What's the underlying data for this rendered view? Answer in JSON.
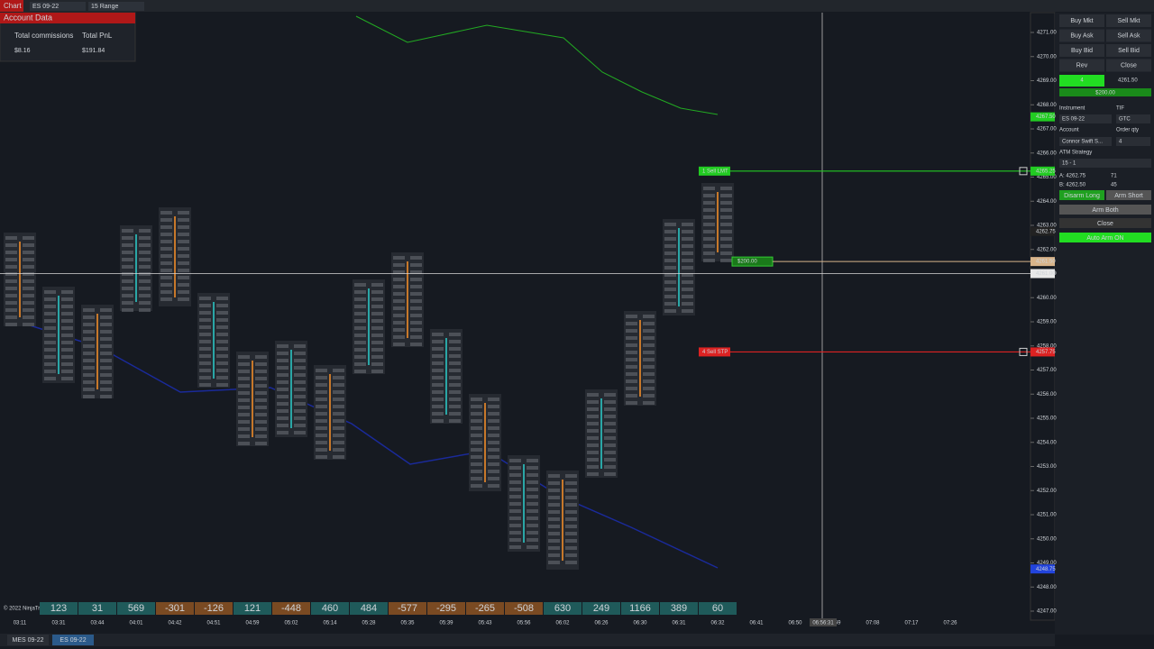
{
  "toolbar": {
    "chart_tab": "Chart",
    "instrument": "ES 09-22",
    "period": "15 Range"
  },
  "account_panel": {
    "title": "Account Data",
    "headers": [
      "Total commissions",
      "Total PnL"
    ],
    "values": [
      "$8.16",
      "$191.84"
    ]
  },
  "price_axis": [
    {
      "value": 4271,
      "label": "4271.00"
    },
    {
      "value": 4270,
      "label": "4270.00"
    },
    {
      "value": 4269,
      "label": "4269.00"
    },
    {
      "value": 4268,
      "label": "4268.00"
    },
    {
      "value": 4267,
      "label": "4267.00"
    },
    {
      "value": 4266,
      "label": "4266.00"
    },
    {
      "value": 4265,
      "label": "4265.00"
    },
    {
      "value": 4264,
      "label": "4264.00"
    },
    {
      "value": 4263,
      "label": "4263.00"
    },
    {
      "value": 4262,
      "label": "4262.00"
    },
    {
      "value": 4261,
      "label": "4261.00"
    },
    {
      "value": 4260,
      "label": "4260.00"
    },
    {
      "value": 4259,
      "label": "4259.00"
    },
    {
      "value": 4258,
      "label": "4258.00"
    },
    {
      "value": 4257,
      "label": "4257.00"
    },
    {
      "value": 4256,
      "label": "4256.00"
    },
    {
      "value": 4255,
      "label": "4255.00"
    },
    {
      "value": 4254,
      "label": "4254.00"
    },
    {
      "value": 4253,
      "label": "4253.00"
    },
    {
      "value": 4252,
      "label": "4252.00"
    },
    {
      "value": 4251,
      "label": "4251.00"
    },
    {
      "value": 4250,
      "label": "4250.00"
    },
    {
      "value": 4249,
      "label": "4249.00"
    },
    {
      "value": 4248,
      "label": "4248.00"
    },
    {
      "value": 4247,
      "label": "4247.00"
    }
  ],
  "price_markers": [
    {
      "value": 4267.5,
      "label": "4267.50",
      "color": "#22cc22"
    },
    {
      "value": 4265.25,
      "label": "4265.25",
      "color": "#22cc22"
    },
    {
      "value": 4262.75,
      "label": "4262.75",
      "color": "#222222"
    },
    {
      "value": 4261.5,
      "label": "4261.50",
      "color": "#d8b48a"
    },
    {
      "value": 4261,
      "label": "4261.00",
      "color": "#e8e8e8"
    },
    {
      "value": 4257.75,
      "label": "4257.75",
      "color": "#dd2222"
    },
    {
      "value": 4248.75,
      "label": "4248.75",
      "color": "#2244dd"
    }
  ],
  "orders": [
    {
      "label": "1 Sell LMT",
      "price": 4265.25,
      "color": "#22cc22"
    },
    {
      "label": "4 Sell STP",
      "price": 4257.75,
      "color": "#dd2222"
    }
  ],
  "target_tag": {
    "label": "$200.00",
    "price": 4261.5
  },
  "time_labels": [
    "03:11",
    "03:31",
    "03:44",
    "04:01",
    "04:42",
    "04:51",
    "04:59",
    "05:02",
    "05:14",
    "05:28",
    "05:35",
    "05:39",
    "05:43",
    "05:56",
    "06:02",
    "06:26",
    "06:30",
    "06:31",
    "06:32",
    "06:41",
    "06:50",
    "06:59",
    "07:08",
    "07:17",
    "07:26"
  ],
  "crosshair_time": "06:56:31",
  "copyright": "© 2022 NinjaTrader, LLC",
  "delta_row": [
    123,
    31,
    569,
    -301,
    -126,
    121,
    -448,
    460,
    484,
    -577,
    -295,
    -265,
    -508,
    630,
    249,
    1166,
    389,
    60
  ],
  "order_panel": {
    "buttons": [
      "Buy Mkt",
      "Sell Mkt",
      "Buy Ask",
      "Sell Ask",
      "Buy Bid",
      "Sell Bid",
      "Rev",
      "Close"
    ],
    "quantity": "4",
    "position_price": "4261.50",
    "pnl": "$200.00",
    "instrument_label": "Instrument",
    "tif_label": "TIF",
    "instrument": "ES 09-22",
    "tif": "GTC",
    "account_label": "Account",
    "qty_label": "Order qty",
    "account": "Connor Swift S...",
    "qty": "4",
    "atm_label": "ATM Strategy",
    "atm": "15 - 1",
    "ask": "A: 4262.75",
    "ask_size": "71",
    "bid": "B: 4262.50",
    "bid_size": "45",
    "disarm_long": "Disarm Long",
    "arm_short": "Arm Short",
    "arm_both": "Arm Both",
    "close": "Close",
    "auto_arm": "Auto Arm ON"
  },
  "tabs": [
    "MES 09-22",
    "ES 09-22"
  ]
}
